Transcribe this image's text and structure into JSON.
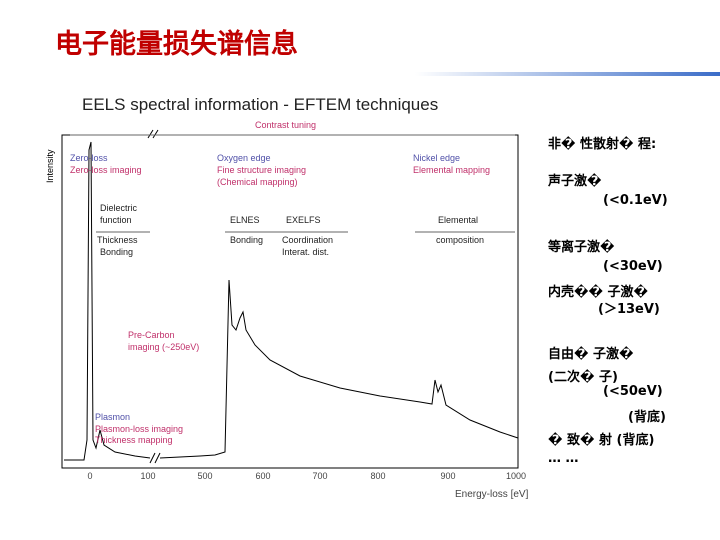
{
  "title": "电子能量损失谱信息",
  "figure": {
    "title": "EELS spectral information - EFTEM techniques",
    "y_label": "Intensity",
    "x_label": "Energy-loss [eV]",
    "x_ticks": [
      "0",
      "100",
      "500",
      "600",
      "700",
      "800",
      "900",
      "1000"
    ],
    "annotations": [
      "Contrast tuning",
      "Zero-loss",
      "Zero-loss imaging",
      "Oxygen edge",
      "Fine structure imaging",
      "(Chemical mapping)",
      "Nickel edge",
      "Elemental mapping",
      "Dielectric",
      "function",
      "Thickness",
      "Bonding",
      "ELNES",
      "Bonding",
      "EXELFS",
      "Coordination",
      "Interat. dist.",
      "Elemental",
      "composition",
      "Pre-Carbon",
      "imaging (~250eV)",
      "Plasmon",
      "Plasmon-loss imaging",
      "Thickness mapping"
    ]
  },
  "notes": [
    "非� 性散射� 程:",
    "声子激�",
    "(<0.1eV)",
    "等离子激�",
    "(<30eV)",
    "内壳�� 子激�",
    "(＞13eV)",
    "自由� 子激�",
    "(二次� 子)",
    "(<50eV)",
    "(背底)",
    "� 致� 射 (背底)",
    "… …"
  ]
}
